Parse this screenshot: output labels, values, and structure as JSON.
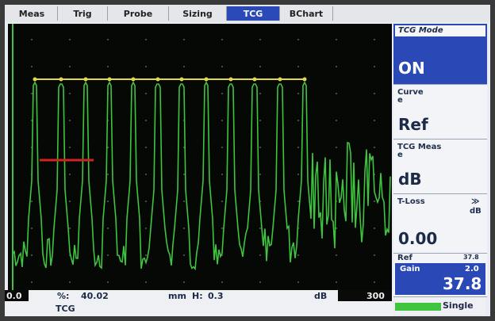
{
  "tabs": [
    {
      "label": "Meas"
    },
    {
      "label": "Trig"
    },
    {
      "label": "Probe"
    },
    {
      "label": "Sizing"
    },
    {
      "label": "TCG",
      "active": true
    },
    {
      "label": "BChart"
    }
  ],
  "panel": {
    "tcg_mode": {
      "label": "TCG Mode",
      "value": "ON"
    },
    "curve": {
      "label": "Curve",
      "sub": "e",
      "value": "Ref"
    },
    "tcg_meas": {
      "label": "TCG Meas",
      "sub": "e",
      "value": "dB"
    },
    "t_loss": {
      "label": "T-Loss",
      "arrow": "≫",
      "unit": "dB",
      "value": "0.00"
    },
    "ref": {
      "label": "Ref",
      "value": "37.8"
    },
    "gain": {
      "label": "Gain",
      "step": "2.0",
      "value": "37.8"
    },
    "single": {
      "label": "Single"
    }
  },
  "status": {
    "x_min": "0.0",
    "x_max": "300",
    "readout_symbol": "%:",
    "readout_value": "40.02",
    "unit_mm": "mm",
    "h_label": "H:",
    "h_value": "0.3",
    "db_label": "dB",
    "mode": "TCG"
  },
  "colors": {
    "trace": "#3fc43f",
    "tcg_curve": "#e2d84a",
    "gate": "#d02424",
    "accent": "#2b49b6"
  }
}
